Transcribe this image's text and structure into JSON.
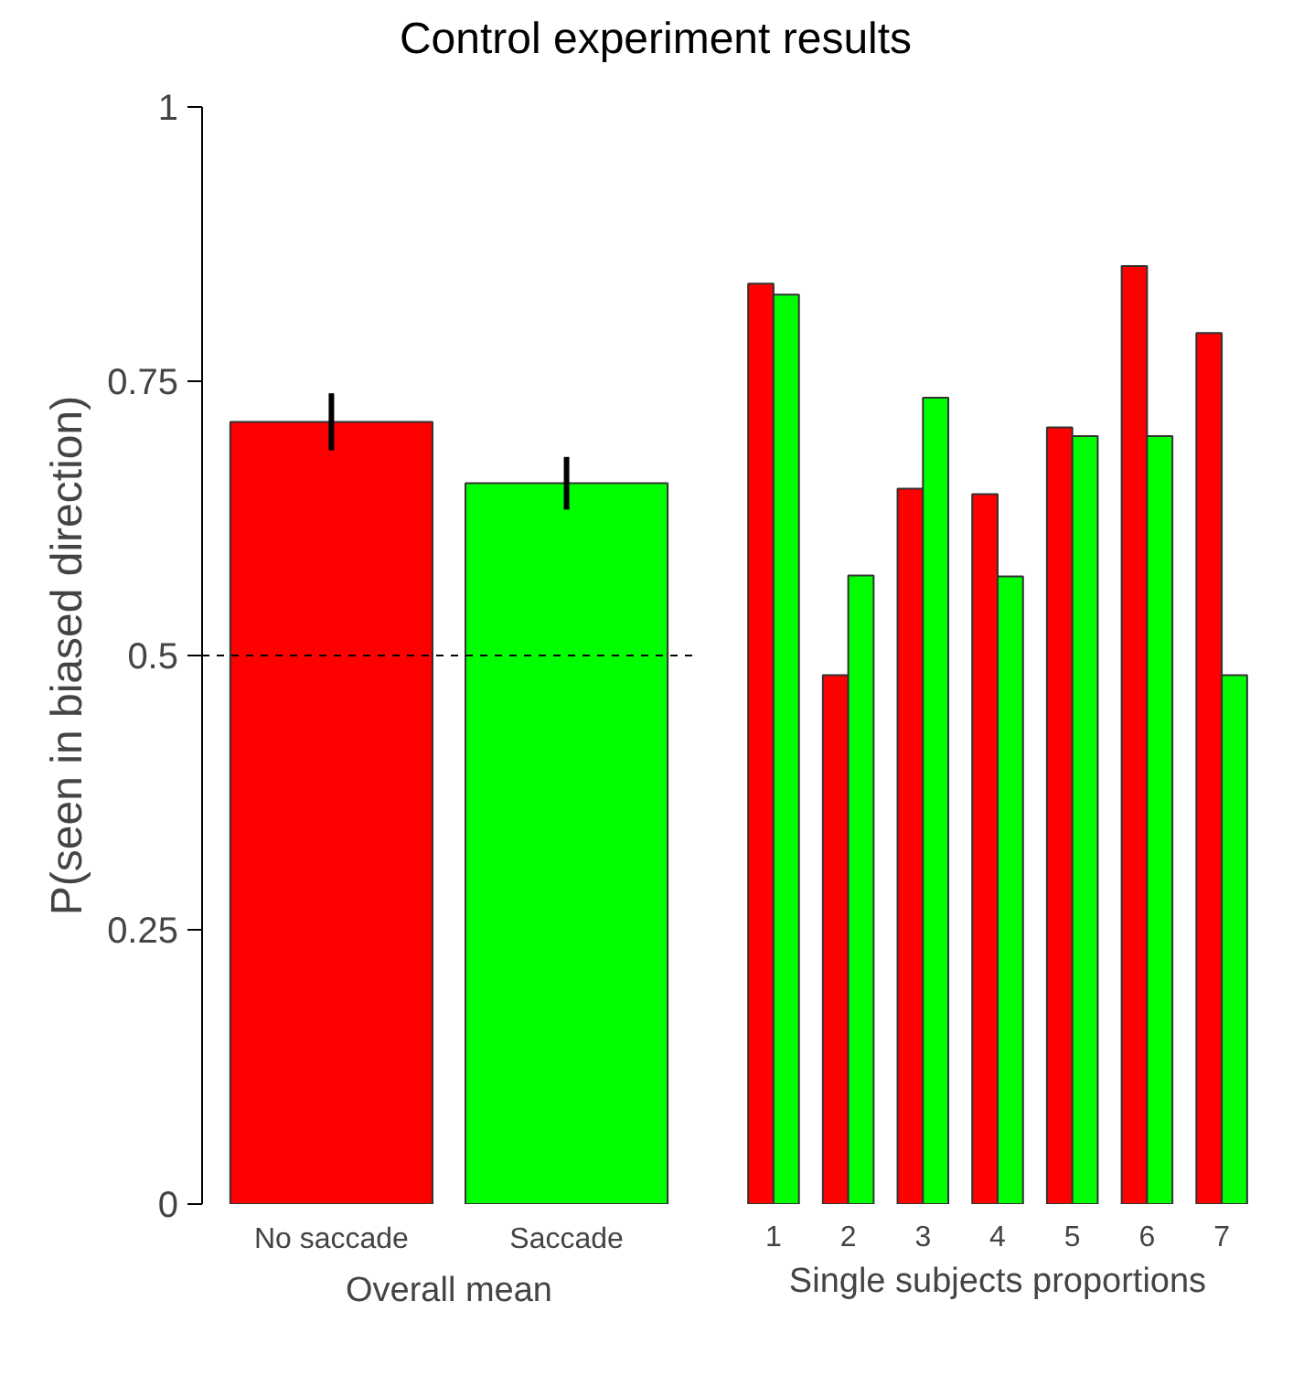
{
  "chart_data": [
    {
      "type": "bar",
      "title": "Control experiment results",
      "categories": [
        "No saccade",
        "Saccade"
      ],
      "values": [
        0.713,
        0.657
      ],
      "colors": [
        "#ff0000",
        "#00ff00"
      ],
      "errors": [
        0.026,
        0.024
      ],
      "xlabel": "Overall mean",
      "ylabel": "P(seen in biased direction)",
      "ylim": [
        0,
        1
      ],
      "yticks": [
        0,
        0.25,
        0.5,
        0.75,
        1
      ],
      "grid": false,
      "ref_lines": [
        {
          "axis": "y",
          "value": 0.5,
          "label": null,
          "color": "#000000",
          "line_style": "dashed"
        }
      ]
    },
    {
      "type": "bar",
      "categories": [
        "1",
        "2",
        "3",
        "4",
        "5",
        "6",
        "7"
      ],
      "xlabel": "Single subjects proportions",
      "ylim": [
        0,
        1
      ],
      "tick_labels": "x",
      "grid": false,
      "series": [
        {
          "color": "#ff0000",
          "values": [
            0.839,
            0.482,
            0.652,
            0.647,
            0.708,
            0.855,
            0.794
          ]
        },
        {
          "color": "#00ff00",
          "values": [
            0.829,
            0.573,
            0.735,
            0.572,
            0.7,
            0.7,
            0.482
          ]
        }
      ]
    }
  ]
}
